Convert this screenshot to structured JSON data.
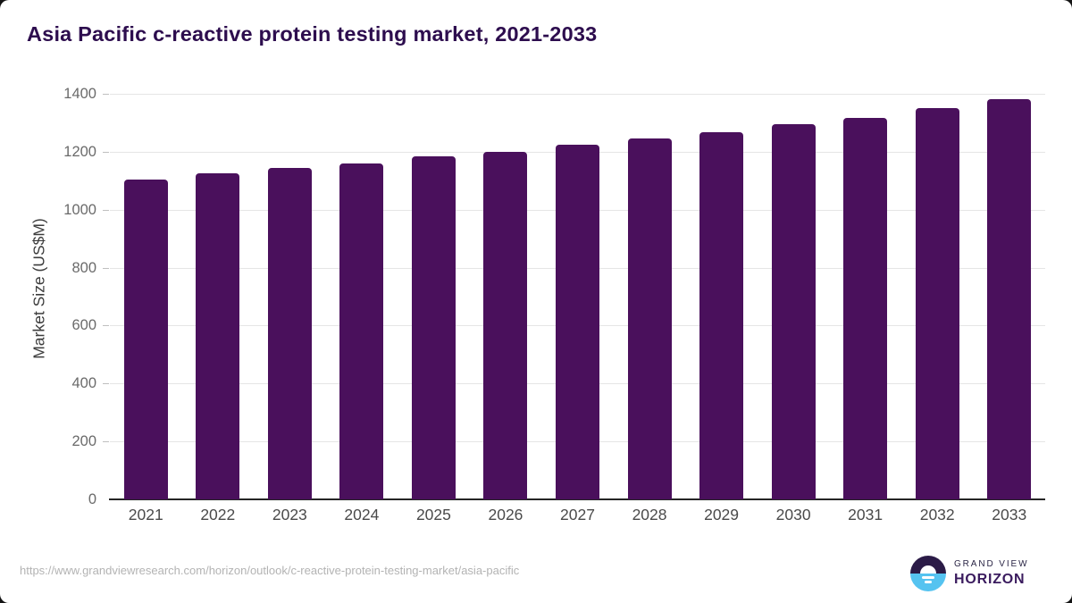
{
  "chart_data": {
    "type": "bar",
    "title": "Asia Pacific c-reactive protein testing market, 2021-2033",
    "ylabel": "Market Size (US$M)",
    "xlabel": "",
    "categories": [
      "2021",
      "2022",
      "2023",
      "2024",
      "2025",
      "2026",
      "2027",
      "2028",
      "2029",
      "2030",
      "2031",
      "2032",
      "2033"
    ],
    "values": [
      1105,
      1125,
      1144,
      1160,
      1183,
      1200,
      1224,
      1245,
      1266,
      1295,
      1317,
      1350,
      1381
    ],
    "ylim": [
      0,
      1400
    ],
    "yticks": [
      0,
      200,
      400,
      600,
      800,
      1000,
      1200,
      1400
    ],
    "grid": "horizontal",
    "legend": "none",
    "bar_color": "#4a105c"
  },
  "footer": {
    "url": "https://www.grandviewresearch.com/horizon/outlook/c-reactive-protein-testing-market/asia-pacific",
    "logo": {
      "line1": "GRAND VIEW",
      "line2": "HORIZON"
    }
  },
  "colors": {
    "title": "#2d0d4e",
    "bar": "#4a105c",
    "gridline": "#e5e5e5",
    "tickmark": "#bfbfbf",
    "axis_line": "#262626",
    "y_tick_label": "#6a6a6a",
    "x_tick_label": "#4a4a4a",
    "y_axis_title": "#3c3c3c",
    "url_text": "#b3b3b3",
    "logo_purple": "#2b1b47",
    "logo_blue": "#55c3f0",
    "logo_grandview_text": "#2a2545",
    "logo_horizon_text": "#3a1b5e"
  }
}
